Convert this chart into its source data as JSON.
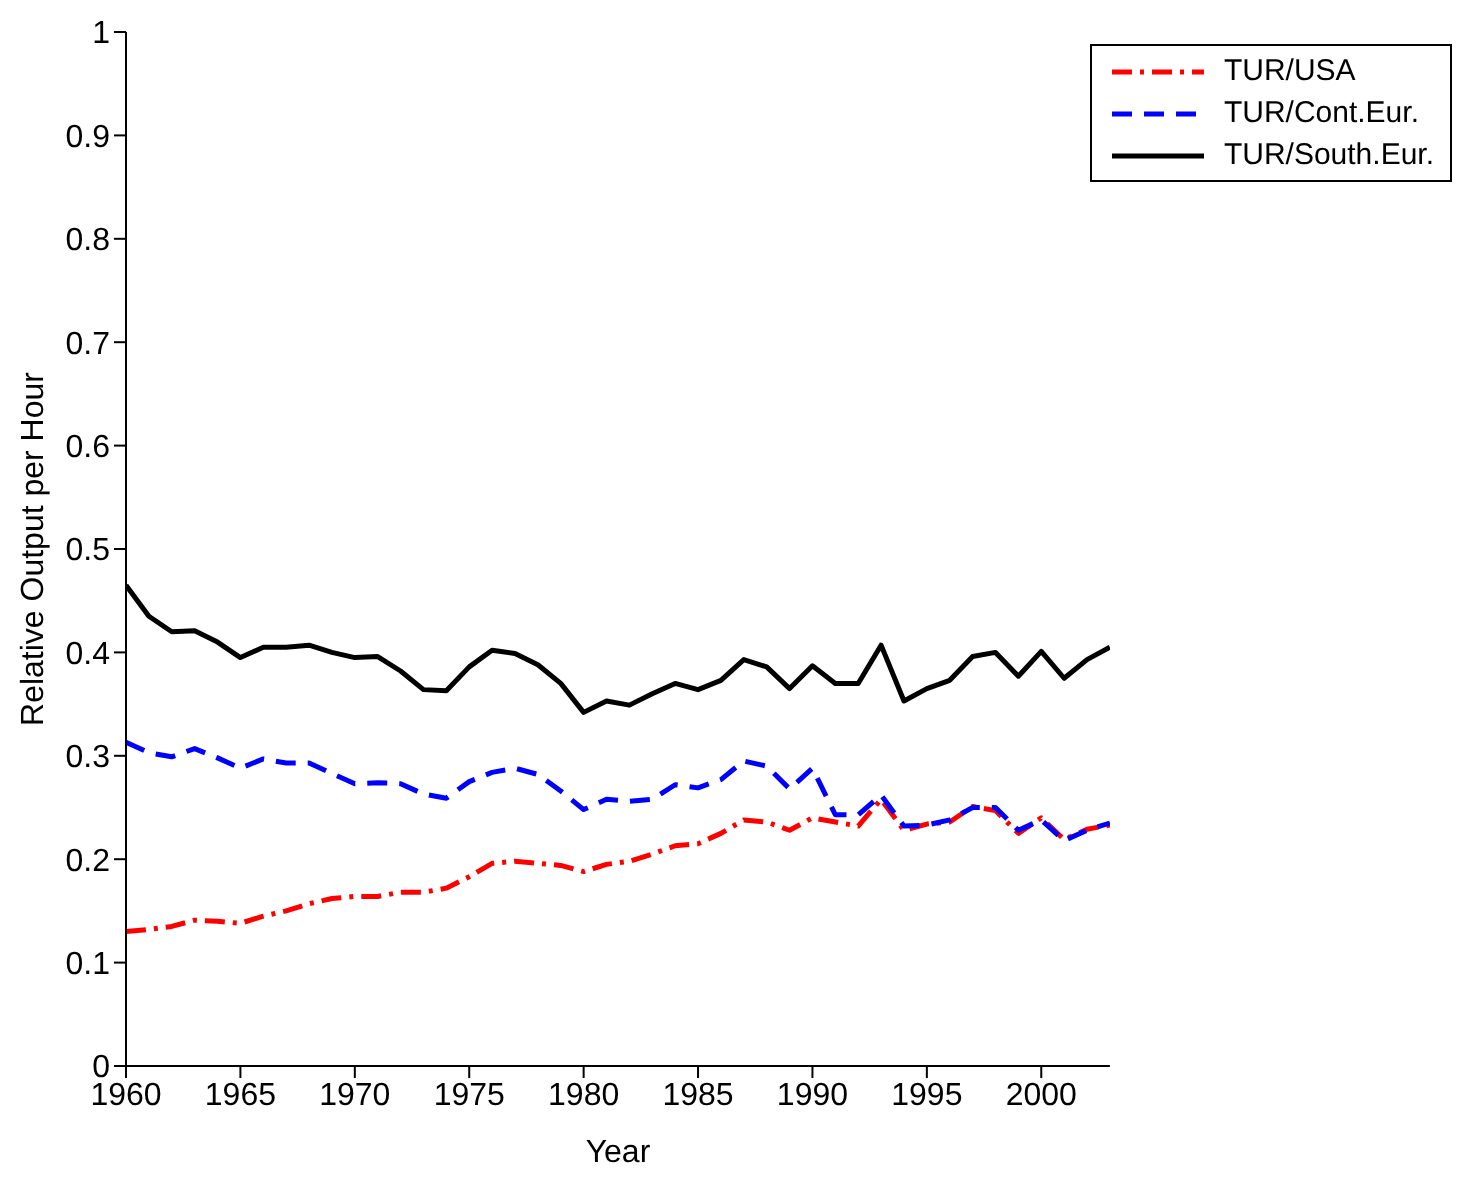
{
  "chart_data": {
    "type": "line",
    "xlabel": "Year",
    "ylabel": "Relative Output per Hour",
    "x": [
      1960,
      1961,
      1962,
      1963,
      1964,
      1965,
      1966,
      1967,
      1968,
      1969,
      1970,
      1971,
      1972,
      1973,
      1974,
      1975,
      1976,
      1977,
      1978,
      1979,
      1980,
      1981,
      1982,
      1983,
      1984,
      1985,
      1986,
      1987,
      1988,
      1989,
      1990,
      1991,
      1992,
      1993,
      1994,
      1995,
      1996,
      1997,
      1998,
      1999,
      2000,
      2001,
      2002,
      2003
    ],
    "series": [
      {
        "name": "TUR/USA",
        "color": "#ff0000",
        "line_style": "dashdot",
        "values": [
          0.13,
          0.132,
          0.135,
          0.141,
          0.14,
          0.138,
          0.145,
          0.15,
          0.157,
          0.162,
          0.164,
          0.164,
          0.168,
          0.168,
          0.172,
          0.183,
          0.196,
          0.198,
          0.196,
          0.194,
          0.188,
          0.195,
          0.198,
          0.205,
          0.213,
          0.215,
          0.225,
          0.238,
          0.236,
          0.228,
          0.24,
          0.236,
          0.232,
          0.258,
          0.228,
          0.234,
          0.236,
          0.251,
          0.247,
          0.225,
          0.24,
          0.219,
          0.229,
          0.233
        ]
      },
      {
        "name": "TUR/Cont.Eur.",
        "color": "#0000ff",
        "line_style": "dashed",
        "values": [
          0.313,
          0.303,
          0.299,
          0.307,
          0.298,
          0.288,
          0.297,
          0.293,
          0.293,
          0.283,
          0.273,
          0.274,
          0.273,
          0.263,
          0.259,
          0.275,
          0.284,
          0.288,
          0.282,
          0.266,
          0.248,
          0.258,
          0.256,
          0.258,
          0.272,
          0.269,
          0.277,
          0.295,
          0.29,
          0.268,
          0.288,
          0.243,
          0.243,
          0.262,
          0.232,
          0.233,
          0.238,
          0.25,
          0.25,
          0.228,
          0.238,
          0.218,
          0.228,
          0.235
        ]
      },
      {
        "name": "TUR/South.Eur.",
        "color": "#000000",
        "line_style": "solid",
        "values": [
          0.465,
          0.435,
          0.42,
          0.421,
          0.41,
          0.395,
          0.405,
          0.405,
          0.407,
          0.4,
          0.395,
          0.396,
          0.382,
          0.364,
          0.363,
          0.386,
          0.402,
          0.399,
          0.388,
          0.37,
          0.342,
          0.353,
          0.349,
          0.36,
          0.37,
          0.364,
          0.373,
          0.393,
          0.386,
          0.365,
          0.387,
          0.37,
          0.37,
          0.407,
          0.353,
          0.365,
          0.373,
          0.396,
          0.4,
          0.377,
          0.401,
          0.375,
          0.393,
          0.405
        ]
      }
    ],
    "xlim": [
      1960,
      2003
    ],
    "xticks": [
      1960,
      1965,
      1970,
      1975,
      1980,
      1985,
      1990,
      1995,
      2000
    ],
    "ylim": [
      0,
      1
    ],
    "yticks": [
      0,
      0.1,
      0.2,
      0.3,
      0.4,
      0.5,
      0.6,
      0.7,
      0.8,
      0.9,
      1
    ],
    "legend": "top right"
  }
}
